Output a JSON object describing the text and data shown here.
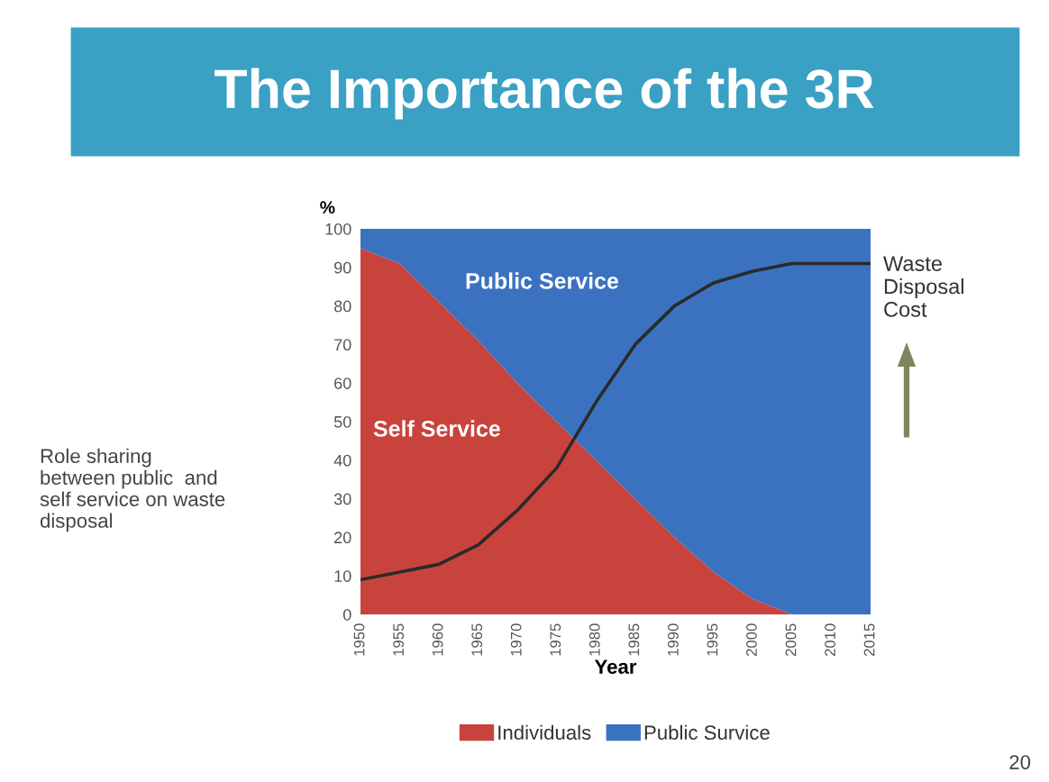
{
  "chart_data": {
    "type": "area",
    "stacked": true,
    "title": "The Importance of the 3R",
    "xlabel": "Year",
    "ylabel": "%",
    "x": [
      1950,
      1955,
      1960,
      1965,
      1970,
      1975,
      1980,
      1985,
      1990,
      1995,
      2000,
      2005,
      2010,
      2015
    ],
    "xlim": [
      1950,
      2015
    ],
    "xticks": [
      1950,
      1955,
      1960,
      1965,
      1970,
      1975,
      1980,
      1985,
      1990,
      1995,
      2000,
      2005,
      2010,
      2015
    ],
    "ylim": [
      0,
      100
    ],
    "yticks": [
      0,
      10,
      20,
      30,
      40,
      50,
      60,
      70,
      80,
      90,
      100
    ],
    "series": [
      {
        "name": "Individuals",
        "color": "#c9433d",
        "values": [
          95,
          91,
          81,
          71,
          60,
          50,
          40,
          30,
          20,
          11,
          4,
          0,
          0,
          0
        ]
      },
      {
        "name": "Public Survice",
        "color": "#3b72c0",
        "values": [
          5,
          9,
          19,
          29,
          40,
          50,
          60,
          70,
          80,
          89,
          96,
          100,
          100,
          100
        ]
      },
      {
        "name": "Waste Disposal Cost",
        "type": "line",
        "color": "#2a2a2a",
        "values": [
          9,
          11,
          13,
          18,
          27,
          38,
          55,
          70,
          80,
          86,
          89,
          91,
          91,
          91
        ]
      }
    ],
    "legend": "bottom",
    "grid": false,
    "annotations": [
      "Public Service",
      "Self Service",
      "Role sharing\nbetween public  and\nself service on waste\ndisposal",
      "20"
    ]
  }
}
